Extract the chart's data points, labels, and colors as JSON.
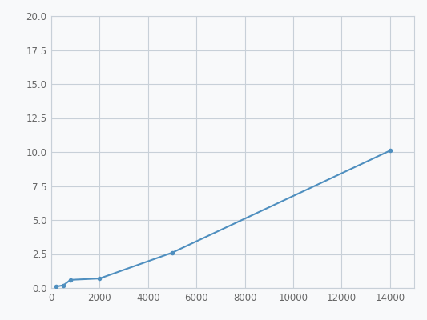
{
  "x": [
    200,
    500,
    800,
    2000,
    5000,
    14000
  ],
  "y": [
    0.1,
    0.2,
    0.6,
    0.7,
    2.6,
    10.1
  ],
  "line_color": "#4f8fbf",
  "marker_color": "#4f8fbf",
  "marker_size": 4,
  "line_width": 1.5,
  "xlim": [
    0,
    15000
  ],
  "ylim": [
    0,
    20.0
  ],
  "xticks": [
    0,
    2000,
    4000,
    6000,
    8000,
    10000,
    12000,
    14000
  ],
  "yticks": [
    0.0,
    2.5,
    5.0,
    7.5,
    10.0,
    12.5,
    15.0,
    17.5,
    20.0
  ],
  "grid_color": "#c8d0d8",
  "background_color": "#f8f9fa",
  "plot_bg_color": "#f8f9fa",
  "tick_fontsize": 8.5,
  "tick_color": "#666666"
}
